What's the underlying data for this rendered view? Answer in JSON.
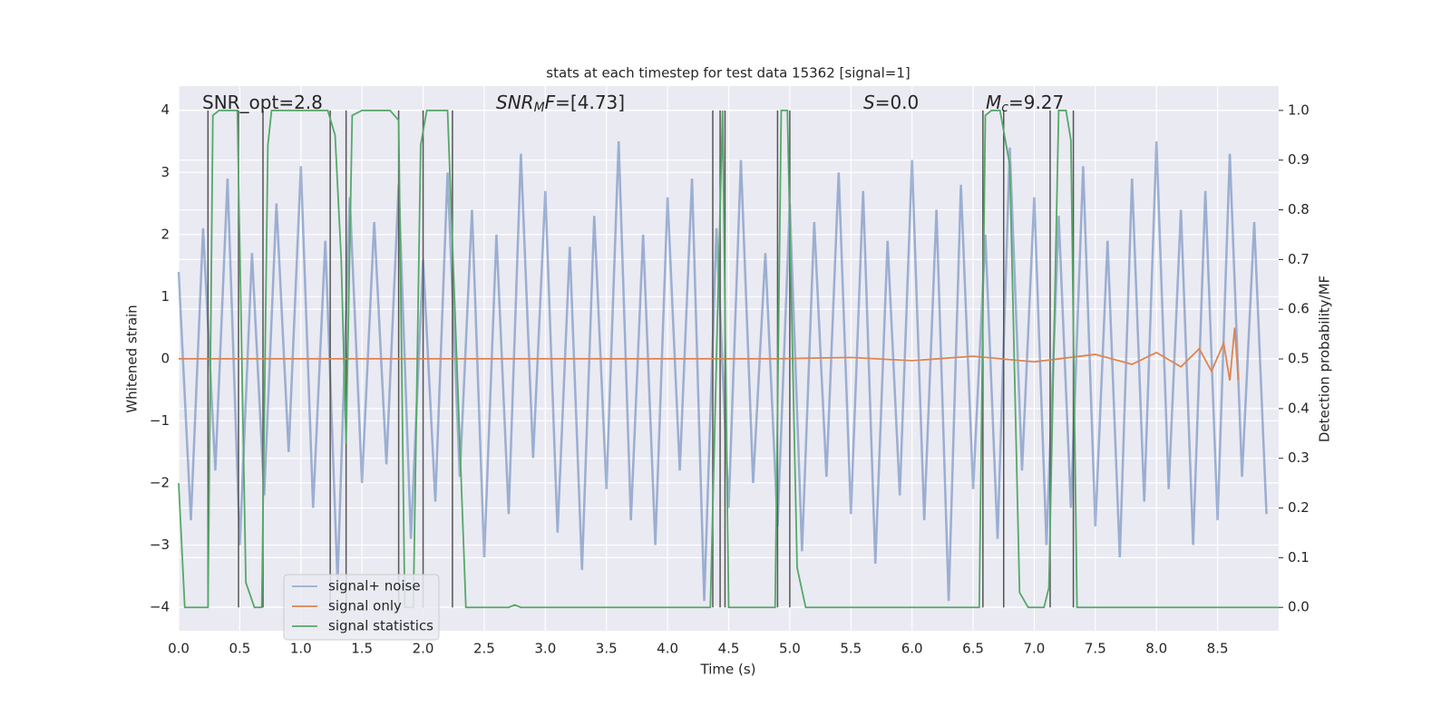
{
  "chart_data": {
    "type": "line",
    "title": "stats at each timestep for test data 15362 [signal=1]",
    "xlabel": "Time (s)",
    "ylabel": "Whitened strain",
    "y2label": "Detection probability/MF",
    "annotations": [
      [
        {
          "text": "SNR_opt=2.8"
        }
      ],
      [
        {
          "text": "SNR",
          "italic": true
        },
        {
          "text": "M",
          "italic": true,
          "sub": true
        },
        {
          "text": "F",
          "italic": true
        },
        {
          "text": "=[4.73]"
        }
      ],
      [
        {
          "text": "S",
          "italic": true
        },
        {
          "text": "=0.0"
        }
      ],
      [
        {
          "text": "M",
          "italic": true
        },
        {
          "text": "c",
          "italic": true,
          "sub": true
        },
        {
          "text": "=9.27"
        }
      ]
    ],
    "xlim": [
      0,
      9.0
    ],
    "ylim": [
      -4.38,
      4.39
    ],
    "y2lim": [
      -0.047,
      1.049
    ],
    "grid": true,
    "legend": "lower left",
    "xticks": [
      {
        "value": 0,
        "label": "0.0"
      },
      {
        "value": 0.5,
        "label": "0.5"
      },
      {
        "value": 1,
        "label": "1.0"
      },
      {
        "value": 1.5,
        "label": "1.5"
      },
      {
        "value": 2,
        "label": "2.0"
      },
      {
        "value": 2.5,
        "label": "2.5"
      },
      {
        "value": 3,
        "label": "3.0"
      },
      {
        "value": 3.5,
        "label": "3.5"
      },
      {
        "value": 4,
        "label": "4.0"
      },
      {
        "value": 4.5,
        "label": "4.5"
      },
      {
        "value": 5,
        "label": "5.0"
      },
      {
        "value": 5.5,
        "label": "5.5"
      },
      {
        "value": 6,
        "label": "6.0"
      },
      {
        "value": 6.5,
        "label": "6.5"
      },
      {
        "value": 7,
        "label": "7.0"
      },
      {
        "value": 7.5,
        "label": "7.5"
      },
      {
        "value": 8,
        "label": "8.0"
      },
      {
        "value": 8.5,
        "label": "8.5"
      }
    ],
    "yticks": [
      {
        "value": -4,
        "label": "−4"
      },
      {
        "value": -3,
        "label": "−3"
      },
      {
        "value": -2,
        "label": "−2"
      },
      {
        "value": -1,
        "label": "−1"
      },
      0,
      1,
      2,
      3,
      4
    ],
    "y2ticks": [
      {
        "value": 0,
        "label": "0.0"
      },
      {
        "value": 0.1,
        "label": "0.1"
      },
      {
        "value": 0.2,
        "label": "0.2"
      },
      {
        "value": 0.3,
        "label": "0.3"
      },
      {
        "value": 0.4,
        "label": "0.4"
      },
      {
        "value": 0.5,
        "label": "0.5"
      },
      {
        "value": 0.6,
        "label": "0.6"
      },
      {
        "value": 0.7,
        "label": "0.7"
      },
      {
        "value": 0.8,
        "label": "0.8"
      },
      {
        "value": 0.9,
        "label": "0.9"
      },
      {
        "value": 1,
        "label": "1.0"
      }
    ],
    "series": [
      {
        "name": "signal+ noise",
        "color": "#4c72b0",
        "x": [
          0,
          0.1,
          0.2,
          0.3,
          0.4,
          0.5,
          0.6,
          0.7,
          0.8,
          0.9,
          1,
          1.1,
          1.2,
          1.3,
          1.4,
          1.5,
          1.6,
          1.7,
          1.8,
          1.9,
          2,
          2.1,
          2.2,
          2.3,
          2.4,
          2.5,
          2.6,
          2.7,
          2.8,
          2.9,
          3,
          3.1,
          3.2,
          3.3,
          3.4,
          3.5,
          3.6,
          3.7,
          3.8,
          3.9,
          4,
          4.1,
          4.2,
          4.3,
          4.4,
          4.5,
          4.6,
          4.7,
          4.8,
          4.9,
          5,
          5.1,
          5.2,
          5.3,
          5.4,
          5.5,
          5.6,
          5.7,
          5.8,
          5.9,
          6,
          6.1,
          6.2,
          6.3,
          6.4,
          6.5,
          6.6,
          6.7,
          6.8,
          6.9,
          7,
          7.1,
          7.2,
          7.3,
          7.4,
          7.5,
          7.6,
          7.7,
          7.8,
          7.9,
          8,
          8.1,
          8.2,
          8.3,
          8.4,
          8.5,
          8.6,
          8.7,
          8.8,
          8.9
        ],
        "values": [
          1.4,
          -2.6,
          2.1,
          -1.8,
          2.9,
          -3.0,
          1.7,
          -2.2,
          2.5,
          -1.5,
          3.1,
          -2.4,
          1.9,
          -3.6,
          2.6,
          -2.0,
          2.2,
          -1.7,
          2.8,
          -2.9,
          1.6,
          -2.3,
          3.0,
          -1.9,
          2.4,
          -3.2,
          2.0,
          -2.5,
          3.3,
          -1.6,
          2.7,
          -2.8,
          1.8,
          -3.4,
          2.3,
          -2.1,
          3.5,
          -2.6,
          2.0,
          -3.0,
          2.6,
          -1.8,
          2.9,
          -3.9,
          2.1,
          -2.4,
          3.2,
          -2.0,
          1.7,
          -2.7,
          2.5,
          -3.1,
          2.2,
          -1.9,
          3.0,
          -2.5,
          2.7,
          -3.3,
          1.9,
          -2.2,
          3.2,
          -2.6,
          2.4,
          -3.9,
          2.8,
          -2.1,
          2.0,
          -2.9,
          3.4,
          -1.8,
          2.6,
          -3.0,
          2.3,
          -2.4,
          3.1,
          -2.7,
          1.9,
          -3.2,
          2.9,
          -2.3,
          3.5,
          -2.1,
          2.4,
          -3.0,
          2.7,
          -2.6,
          3.3,
          -1.9,
          2.2,
          -2.5
        ]
      },
      {
        "name": "signal only",
        "color": "#dd8452",
        "x": [
          0,
          4.9,
          5.5,
          6.0,
          6.5,
          7.0,
          7.5,
          7.8,
          8.0,
          8.2,
          8.35,
          8.45,
          8.55,
          8.6,
          8.64,
          8.67
        ],
        "values": [
          0,
          0,
          0.02,
          -0.03,
          0.04,
          -0.05,
          0.07,
          -0.09,
          0.1,
          -0.13,
          0.16,
          -0.2,
          0.25,
          -0.35,
          0.5,
          -0.35
        ]
      },
      {
        "name": "signal statistics",
        "color": "#55a868",
        "axis": "y2",
        "x": [
          0,
          0.05,
          0.24,
          0.28,
          0.33,
          0.48,
          0.55,
          0.62,
          0.68,
          0.73,
          0.76,
          1.22,
          1.28,
          1.33,
          1.37,
          1.42,
          1.5,
          1.73,
          1.8,
          1.85,
          1.92,
          1.98,
          2.03,
          2.2,
          2.35,
          2.7,
          2.75,
          2.8,
          4.35,
          4.45,
          4.5,
          4.88,
          4.93,
          4.98,
          5.06,
          5.13,
          6.55,
          6.6,
          6.65,
          6.72,
          6.8,
          6.88,
          6.95,
          7.08,
          7.12,
          7.2,
          7.26,
          7.3,
          7.35,
          9.0
        ],
        "values": [
          0.25,
          0,
          0,
          0.99,
          1,
          1,
          0.05,
          0,
          0,
          0.93,
          1,
          1,
          0.95,
          0.7,
          0.33,
          0.99,
          1,
          1,
          0.98,
          0,
          0,
          0.93,
          1,
          1,
          0,
          0,
          0.005,
          0,
          0,
          1,
          0,
          0,
          1,
          1,
          0.08,
          0,
          0,
          0.99,
          1,
          1,
          0.89,
          0.03,
          0,
          0,
          0.04,
          1,
          1,
          0.94,
          0,
          0
        ]
      }
    ],
    "events": {
      "color": "#555555",
      "x": [
        0.24,
        0.49,
        0.69,
        1.24,
        1.37,
        1.8,
        2.0,
        2.24,
        4.37,
        4.43,
        4.47,
        4.9,
        5.0,
        6.58,
        6.75,
        7.13,
        7.32
      ]
    }
  }
}
